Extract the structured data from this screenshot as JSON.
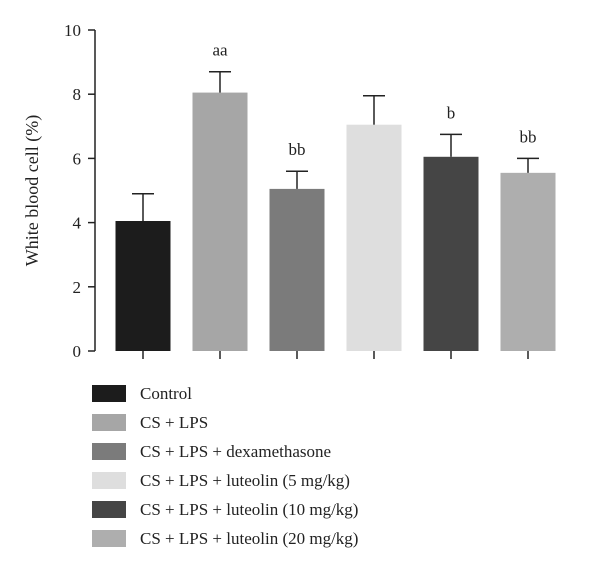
{
  "chart_data": {
    "type": "bar",
    "title": "",
    "xlabel": "",
    "ylabel": "White blood cell (%)",
    "ylim": [
      0,
      10
    ],
    "yticks": [
      0,
      2,
      4,
      6,
      8,
      10
    ],
    "grid": false,
    "legend_position": "bottom",
    "categories": [
      "Control",
      "CS + LPS",
      "CS + LPS + dexamethasone",
      "CS + LPS + luteolin (5 mg/kg)",
      "CS + LPS + luteolin (10 mg/kg)",
      "CS + LPS + luteolin (20 mg/kg)"
    ],
    "values": [
      4.05,
      8.05,
      5.05,
      7.05,
      6.05,
      5.55
    ],
    "errors": [
      0.85,
      0.65,
      0.55,
      0.9,
      0.7,
      0.45
    ],
    "annotations": [
      "",
      "aa",
      "bb",
      "",
      "b",
      "bb"
    ],
    "colors": [
      "#1c1c1c",
      "#a6a6a6",
      "#7b7b7b",
      "#dedede",
      "#454545",
      "#aeaeae"
    ]
  }
}
